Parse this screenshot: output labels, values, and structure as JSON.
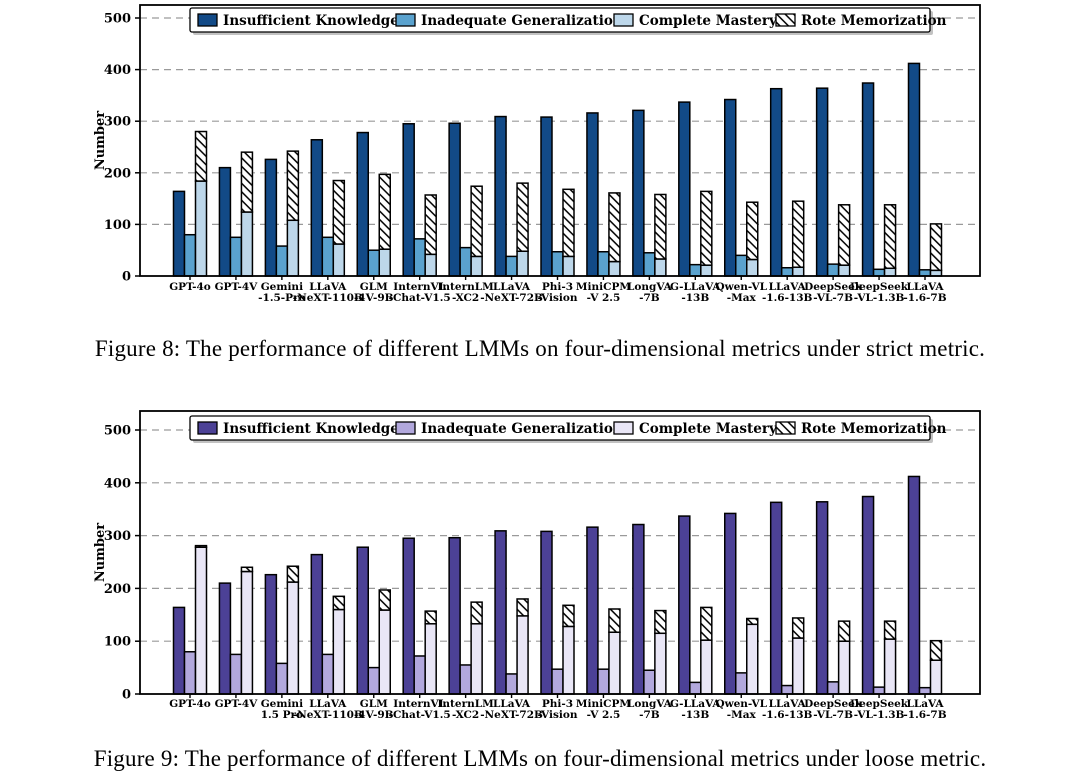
{
  "figures": [
    {
      "caption": "Figure 8: The performance of different LMMs on four-dimensional metrics under strict metric."
    },
    {
      "caption": "Figure 9: The performance of different LMMs on four-dimensional metrics under loose metric."
    }
  ],
  "chart_data": [
    {
      "type": "bar",
      "title": "",
      "xlabel": "",
      "ylabel": "Number",
      "ylim": [
        0,
        500
      ],
      "yticks": [
        0,
        100,
        200,
        300,
        400,
        500
      ],
      "grid": "dashed-horizontal",
      "legend_position": "top-center-inside",
      "note": "Series 'Rote Memorization' is stacked on top of 'Complete Mastery'; other series are side-by-side bars.",
      "categories": [
        [
          "GPT-4o",
          ""
        ],
        [
          "GPT-4V",
          ""
        ],
        [
          "Gemini",
          "-1.5-Pro"
        ],
        [
          "LLaVA",
          "-NeXT-110B"
        ],
        [
          "GLM",
          "-4V-9B"
        ],
        [
          "InternVL",
          "-Chat-V1.5"
        ],
        [
          "InternLM",
          "-XC2"
        ],
        [
          "LLaVA",
          "-NeXT-72B"
        ],
        [
          "Phi-3",
          "-Vision"
        ],
        [
          "MiniCPM",
          "-V 2.5"
        ],
        [
          "LongVA",
          "-7B"
        ],
        [
          "G-LLaVA",
          "-13B"
        ],
        [
          "Qwen-VL",
          "-Max"
        ],
        [
          "LLaVA",
          "-1.6-13B"
        ],
        [
          "DeepSeek",
          "-VL-7B"
        ],
        [
          "DeepSeek",
          "-VL-1.3B"
        ],
        [
          "LLaVA",
          "-1.6-7B"
        ]
      ],
      "series": [
        {
          "name": "Insufficient Knowledge",
          "color": "#124a87",
          "values": [
            164,
            210,
            226,
            264,
            278,
            295,
            296,
            309,
            308,
            316,
            321,
            337,
            342,
            363,
            364,
            374,
            412
          ]
        },
        {
          "name": "Inadequate Generalization",
          "color": "#5aa2ce",
          "values": [
            80,
            75,
            58,
            75,
            50,
            72,
            55,
            38,
            47,
            47,
            45,
            22,
            40,
            16,
            23,
            13,
            12
          ]
        },
        {
          "name": "Complete Mastery",
          "color": "#bdd7ea",
          "values": [
            184,
            124,
            108,
            62,
            52,
            42,
            38,
            48,
            38,
            28,
            33,
            21,
            32,
            17,
            21,
            15,
            11
          ]
        },
        {
          "name": "Rote Memorization",
          "color": "hatch",
          "pattern": "diagonal-lines",
          "stacked_on": 2,
          "values": [
            96,
            116,
            134,
            123,
            145,
            115,
            136,
            132,
            130,
            133,
            125,
            143,
            111,
            128,
            117,
            123,
            90
          ]
        }
      ]
    },
    {
      "type": "bar",
      "title": "",
      "xlabel": "",
      "ylabel": "Number",
      "ylim": [
        0,
        500
      ],
      "yticks": [
        0,
        100,
        200,
        300,
        400,
        500
      ],
      "grid": "dashed-horizontal",
      "legend_position": "top-center-inside",
      "note": "Series 'Rote Memorization' is stacked on top of 'Complete Mastery'; other series are side-by-side bars.",
      "categories": [
        [
          "GPT-4o",
          ""
        ],
        [
          "GPT-4V",
          ""
        ],
        [
          "Gemini",
          "1.5 Pro"
        ],
        [
          "LLaVA",
          "-NeXT-110B"
        ],
        [
          "GLM",
          "-4V-9B"
        ],
        [
          "InternVL",
          "-Chat-V1.5"
        ],
        [
          "InternLM",
          "-XC2"
        ],
        [
          "LLaVA",
          "-NeXT-72B"
        ],
        [
          "Phi-3",
          "-Vision"
        ],
        [
          "MiniCPM",
          "-V 2.5"
        ],
        [
          "LongVA",
          "-7B"
        ],
        [
          "G-LLaVA",
          "-13B"
        ],
        [
          "Qwen-VL",
          "-Max"
        ],
        [
          "LLaVA",
          "-1.6-13B"
        ],
        [
          "DeepSeek",
          "-VL-7B"
        ],
        [
          "DeepSeek",
          "-VL-1.3B"
        ],
        [
          "LLaVA",
          "-1.6-7B"
        ]
      ],
      "series": [
        {
          "name": "Insufficient Knowledge",
          "color": "#4c4196",
          "values": [
            164,
            210,
            226,
            264,
            278,
            295,
            296,
            309,
            308,
            316,
            321,
            337,
            342,
            363,
            364,
            374,
            412
          ]
        },
        {
          "name": "Inadequate Generalization",
          "color": "#b2a8dd",
          "values": [
            80,
            75,
            58,
            75,
            50,
            72,
            55,
            38,
            47,
            47,
            45,
            22,
            40,
            16,
            23,
            13,
            12
          ]
        },
        {
          "name": "Complete Mastery",
          "color": "#e9e6f6",
          "values": [
            278,
            232,
            212,
            160,
            159,
            133,
            133,
            148,
            128,
            117,
            115,
            102,
            132,
            106,
            100,
            104,
            64
          ]
        },
        {
          "name": "Rote Memorization",
          "color": "hatch",
          "pattern": "diagonal-lines",
          "stacked_on": 2,
          "values": [
            3,
            8,
            30,
            25,
            38,
            24,
            41,
            32,
            40,
            44,
            43,
            62,
            11,
            38,
            38,
            34,
            37
          ]
        }
      ]
    }
  ]
}
